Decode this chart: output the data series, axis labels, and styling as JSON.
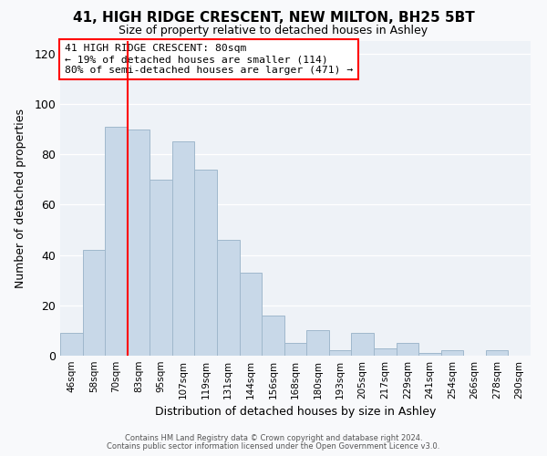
{
  "title": "41, HIGH RIDGE CRESCENT, NEW MILTON, BH25 5BT",
  "subtitle": "Size of property relative to detached houses in Ashley",
  "xlabel": "Distribution of detached houses by size in Ashley",
  "ylabel": "Number of detached properties",
  "bar_labels": [
    "46sqm",
    "58sqm",
    "70sqm",
    "83sqm",
    "95sqm",
    "107sqm",
    "119sqm",
    "131sqm",
    "144sqm",
    "156sqm",
    "168sqm",
    "180sqm",
    "193sqm",
    "205sqm",
    "217sqm",
    "229sqm",
    "241sqm",
    "254sqm",
    "266sqm",
    "278sqm",
    "290sqm"
  ],
  "bar_heights": [
    9,
    42,
    91,
    90,
    70,
    85,
    74,
    46,
    33,
    16,
    5,
    10,
    2,
    9,
    3,
    5,
    1,
    2,
    0,
    2,
    0
  ],
  "bar_color": "#c8d8e8",
  "bar_edge_color": "#a0b8cc",
  "vline_color": "red",
  "vline_x_index": 2.5,
  "ylim": [
    0,
    125
  ],
  "yticks": [
    0,
    20,
    40,
    60,
    80,
    100,
    120
  ],
  "annotation_text": "41 HIGH RIDGE CRESCENT: 80sqm\n← 19% of detached houses are smaller (114)\n80% of semi-detached houses are larger (471) →",
  "annotation_box_color": "white",
  "annotation_box_edge_color": "red",
  "footer1": "Contains HM Land Registry data © Crown copyright and database right 2024.",
  "footer2": "Contains public sector information licensed under the Open Government Licence v3.0.",
  "fig_facecolor": "#f8f9fb",
  "ax_facecolor": "#eef2f7"
}
